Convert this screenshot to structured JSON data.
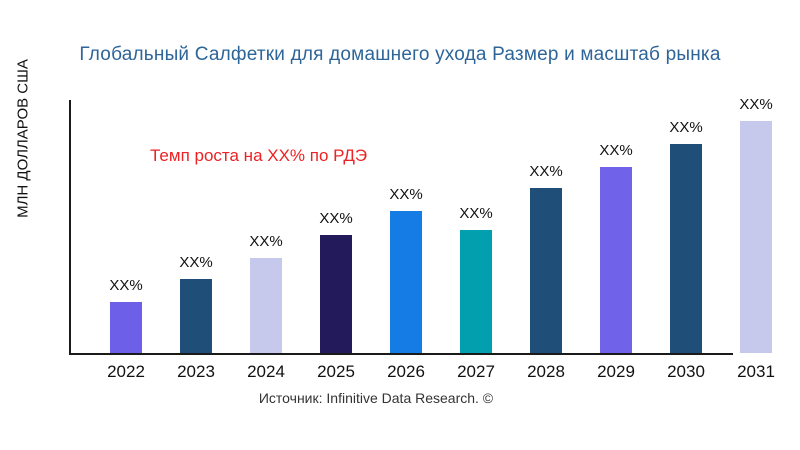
{
  "title": {
    "text": "Глобальный Салфетки для домашнего ухода Размер и масштаб рынка",
    "color": "#2E6599"
  },
  "annotation": {
    "text": "Темп роста на XX% по РДЭ",
    "color": "#EC2224"
  },
  "source": {
    "text": "Источник: Infinitive Data Research. ©"
  },
  "chart_data": {
    "type": "bar",
    "title": "Глобальный Салфетки для домашнего ухода Размер и масштаб рынка",
    "xlabel": "",
    "ylabel": "МЛН ДОЛЛАРОВ США",
    "categories": [
      "2022",
      "2023",
      "2024",
      "2025",
      "2026",
      "2027",
      "2028",
      "2029",
      "2030",
      "2031"
    ],
    "values": [
      22,
      32,
      41,
      51,
      61,
      53,
      71,
      80,
      90,
      100
    ],
    "value_note": "relative bar heights, % of tallest bar; actual values masked as XX% in chart",
    "bar_labels": [
      "XX%",
      "XX%",
      "XX%",
      "XX%",
      "XX%",
      "XX%",
      "XX%",
      "XX%",
      "XX%",
      "XX%"
    ],
    "bar_colors": [
      "#6E5FE8",
      "#1F4E79",
      "#C6C9EC",
      "#221A5A",
      "#147CE4",
      "#02A0AE",
      "#1F4E79",
      "#7162EA",
      "#1F4E79",
      "#C6C9EC"
    ],
    "annotation": "Темп роста на XX% по РДЭ",
    "ylim": [
      0,
      100
    ],
    "grid": false,
    "legend": false
  }
}
